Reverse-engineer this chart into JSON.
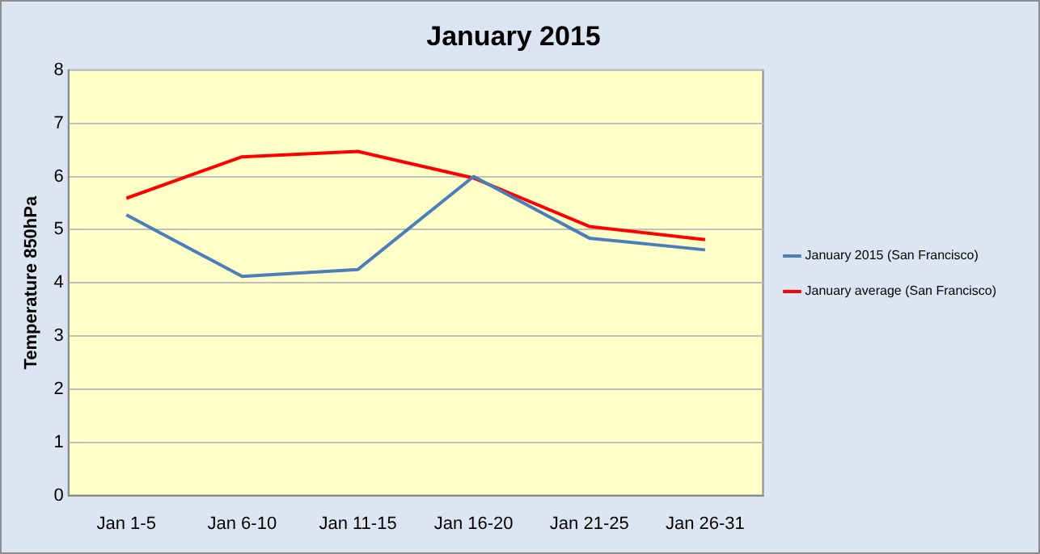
{
  "chart_data": {
    "type": "line",
    "title": "January 2015",
    "ylabel": "Temperature 850hPa",
    "categories": [
      "Jan 1-5",
      "Jan 6-10",
      "Jan 11-15",
      "Jan 16-20",
      "Jan 21-25",
      "Jan 26-31"
    ],
    "series": [
      {
        "name": "January 2015 (San Francisco)",
        "color": "#4a7ebb",
        "values": [
          5.28,
          4.12,
          4.25,
          6.0,
          4.84,
          4.62
        ]
      },
      {
        "name": "January average (San Francisco)",
        "color": "#ff0000",
        "values": [
          5.59,
          6.37,
          6.47,
          5.97,
          5.06,
          4.81
        ]
      }
    ],
    "ylim": [
      0,
      8
    ],
    "yticks": [
      0,
      1,
      2,
      3,
      4,
      5,
      6,
      7,
      8
    ],
    "grid": "y",
    "legend": "right",
    "marker": "none",
    "line_style": "solid"
  }
}
